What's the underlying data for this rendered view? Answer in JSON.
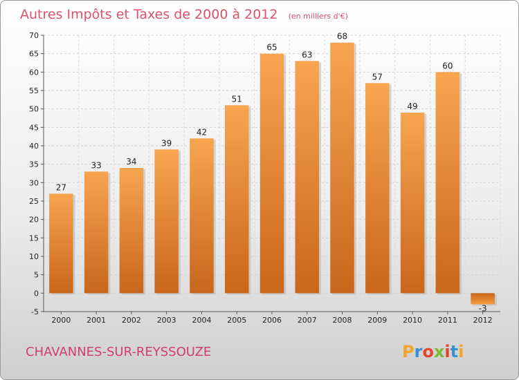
{
  "chart_data": {
    "type": "bar",
    "title": "Autres Impôts et Taxes de 2000 à 2012",
    "subtitle": "(en milliers d'€)",
    "categories": [
      "2000",
      "2001",
      "2002",
      "2003",
      "2004",
      "2005",
      "2006",
      "2007",
      "2008",
      "2009",
      "2010",
      "2011",
      "2012"
    ],
    "values": [
      27,
      33,
      34,
      39,
      42,
      51,
      65,
      63,
      68,
      57,
      49,
      60,
      -3
    ],
    "ylim": [
      -5,
      70
    ],
    "yticks": [
      -5,
      0,
      5,
      10,
      15,
      20,
      25,
      30,
      35,
      40,
      45,
      50,
      55,
      60,
      65,
      70
    ],
    "grid": true,
    "bar_color": "#f39a3c",
    "bar_color_dark": "#c8651a"
  },
  "footer": {
    "commune": "CHAVANNES-SUR-REYSSOUZE",
    "brand": "Proxiti"
  }
}
